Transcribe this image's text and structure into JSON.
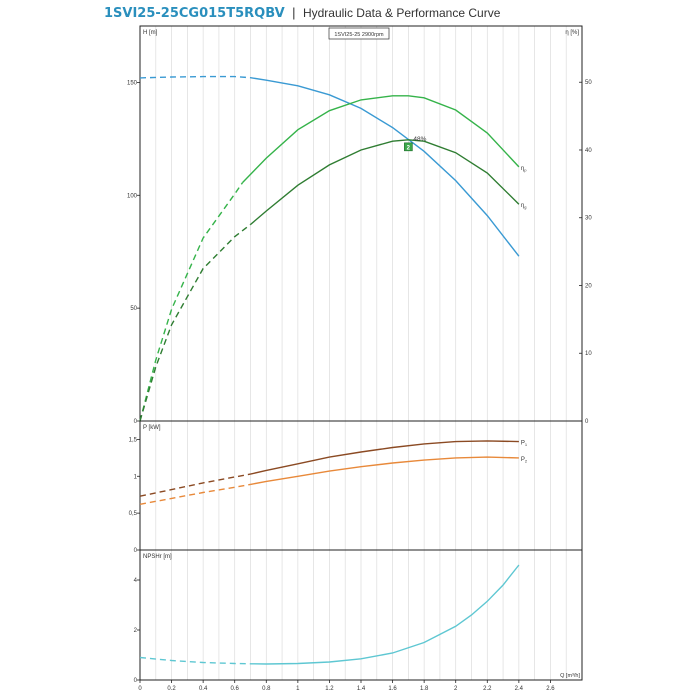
{
  "header": {
    "model": "1SVI25-25CG015T5RQBV",
    "separator": "|",
    "subtitle": "Hydraulic Data & Performance Curve"
  },
  "chart_data": [
    {
      "id": "head",
      "type": "line",
      "title": "1SVI25-25 2900rpm",
      "ylabel": "H [m]",
      "y2label": "η [%]",
      "xlim": [
        0,
        2.8
      ],
      "ylim": [
        0,
        175
      ],
      "y2lim": [
        0,
        58.3
      ],
      "yticks": [
        0,
        50,
        100,
        150
      ],
      "y2ticks": [
        0,
        10,
        20,
        30,
        40,
        50
      ],
      "grid": true,
      "series": [
        {
          "name": "",
          "axis": "left",
          "color": "#3a9ad3",
          "dashed_x": [
            0,
            0.7
          ],
          "x": [
            0,
            0.2,
            0.4,
            0.6,
            0.7,
            0.8,
            1.0,
            1.2,
            1.4,
            1.6,
            1.8,
            2.0,
            2.2,
            2.4
          ],
          "y": [
            152,
            152.4,
            152.6,
            152.6,
            152.1,
            151,
            148.5,
            144.5,
            138.5,
            130,
            119.5,
            106.5,
            91,
            73
          ]
        },
        {
          "name": "η",
          "subscript": "p",
          "axis": "right",
          "color": "#35b34a",
          "dashed_x": [
            0,
            0.65
          ],
          "x": [
            0,
            0.1,
            0.2,
            0.4,
            0.6,
            0.65,
            0.8,
            1.0,
            1.2,
            1.4,
            1.6,
            1.7,
            1.8,
            2.0,
            2.2,
            2.4
          ],
          "y": [
            0,
            9,
            16.5,
            27,
            33.5,
            35.2,
            38.8,
            43,
            45.8,
            47.4,
            48,
            48,
            47.7,
            45.9,
            42.5,
            37.5
          ]
        },
        {
          "name": "η",
          "subscript": "g",
          "axis": "right",
          "color": "#2f7d32",
          "dashed_x": [
            0,
            0.7
          ],
          "x": [
            0,
            0.1,
            0.2,
            0.4,
            0.6,
            0.7,
            0.8,
            1.0,
            1.2,
            1.4,
            1.6,
            1.7,
            1.8,
            2.0,
            2.2,
            2.4
          ],
          "y": [
            0,
            8,
            14.2,
            22.5,
            27.2,
            29,
            31,
            34.8,
            37.8,
            40,
            41.3,
            41.5,
            41.3,
            39.6,
            36.6,
            32
          ]
        }
      ],
      "duty_point": {
        "x": 1.7,
        "y": 41.5,
        "label": "48%",
        "marker": "2"
      }
    },
    {
      "id": "power",
      "type": "line",
      "ylabel": "P [kW]",
      "xlim": [
        0,
        2.8
      ],
      "ylim": [
        0,
        1.75
      ],
      "yticks": [
        0,
        0.5,
        1,
        1.5
      ],
      "ytick_labels": [
        "0",
        "0,5",
        "1",
        "1,5"
      ],
      "grid": true,
      "series": [
        {
          "name": "P",
          "subscript": "1",
          "color": "#8b4a23",
          "dashed_x": [
            0,
            0.7
          ],
          "x": [
            0,
            0.2,
            0.4,
            0.6,
            0.7,
            0.8,
            1.0,
            1.2,
            1.4,
            1.6,
            1.8,
            2.0,
            2.2,
            2.4
          ],
          "y": [
            0.73,
            0.82,
            0.91,
            0.99,
            1.03,
            1.08,
            1.17,
            1.26,
            1.33,
            1.39,
            1.44,
            1.47,
            1.48,
            1.47
          ]
        },
        {
          "name": "P",
          "subscript": "2",
          "color": "#e8893a",
          "dashed_x": [
            0,
            0.7
          ],
          "x": [
            0,
            0.2,
            0.4,
            0.6,
            0.7,
            0.8,
            1.0,
            1.2,
            1.4,
            1.6,
            1.8,
            2.0,
            2.2,
            2.4
          ],
          "y": [
            0.62,
            0.7,
            0.78,
            0.85,
            0.89,
            0.93,
            1.0,
            1.07,
            1.13,
            1.18,
            1.22,
            1.25,
            1.26,
            1.25
          ]
        }
      ]
    },
    {
      "id": "npsh",
      "type": "line",
      "ylabel": "NPSHr [m]",
      "xlabel": "Q [m³/h]",
      "xlim": [
        0,
        2.8
      ],
      "ylim": [
        0,
        5.2
      ],
      "yticks": [
        0,
        2,
        4
      ],
      "xticks": [
        0,
        0.2,
        0.4,
        0.6,
        0.8,
        1,
        1.2,
        1.4,
        1.6,
        1.8,
        2,
        2.2,
        2.4,
        2.6
      ],
      "grid": true,
      "series": [
        {
          "name": "",
          "color": "#5ec7d2",
          "dashed_x": [
            0,
            0.7
          ],
          "x": [
            0,
            0.2,
            0.4,
            0.6,
            0.7,
            0.8,
            1.0,
            1.2,
            1.4,
            1.6,
            1.8,
            2.0,
            2.1,
            2.2,
            2.3,
            2.4
          ],
          "y": [
            0.9,
            0.78,
            0.7,
            0.66,
            0.65,
            0.64,
            0.66,
            0.72,
            0.85,
            1.08,
            1.5,
            2.15,
            2.6,
            3.15,
            3.8,
            4.6
          ]
        }
      ]
    }
  ]
}
